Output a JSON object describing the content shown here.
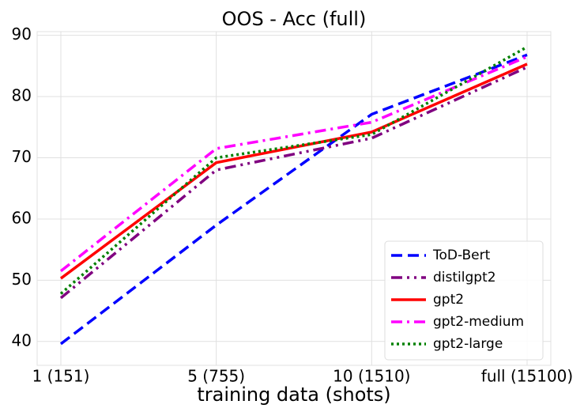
{
  "chart_data": {
    "type": "line",
    "title": "OOS - Acc (full)",
    "x_label": "training data (shots)",
    "categories": [
      "1 (151)",
      "5 (755)",
      "10 (1510)",
      "full (15100)"
    ],
    "series": [
      {
        "name": "ToD-Bert",
        "color": "#0000ff",
        "dash": "14,7",
        "values": [
          39.6,
          59,
          77.1,
          86.8
        ]
      },
      {
        "name": "distilgpt2",
        "color": "#800080",
        "dash": "14,6,3,6,3,6",
        "values": [
          47.1,
          68,
          73.2,
          84.8
        ]
      },
      {
        "name": "gpt2",
        "color": "#ff0000",
        "dash": "none",
        "values": [
          50.3,
          69.2,
          74.2,
          85.3
        ]
      },
      {
        "name": "gpt2-medium",
        "color": "#ff00ff",
        "dash": "14,6,3,6",
        "values": [
          51.5,
          71.5,
          75.8,
          86.5
        ]
      },
      {
        "name": "gpt2-large",
        "color": "#008000",
        "dash": "3,4",
        "values": [
          47.8,
          70,
          73.8,
          88.1
        ]
      }
    ],
    "ylim": [
      36.1,
      90.6
    ],
    "yticks": [
      40,
      50,
      60,
      70,
      80,
      90
    ],
    "grid": true,
    "legend": "lower right"
  }
}
